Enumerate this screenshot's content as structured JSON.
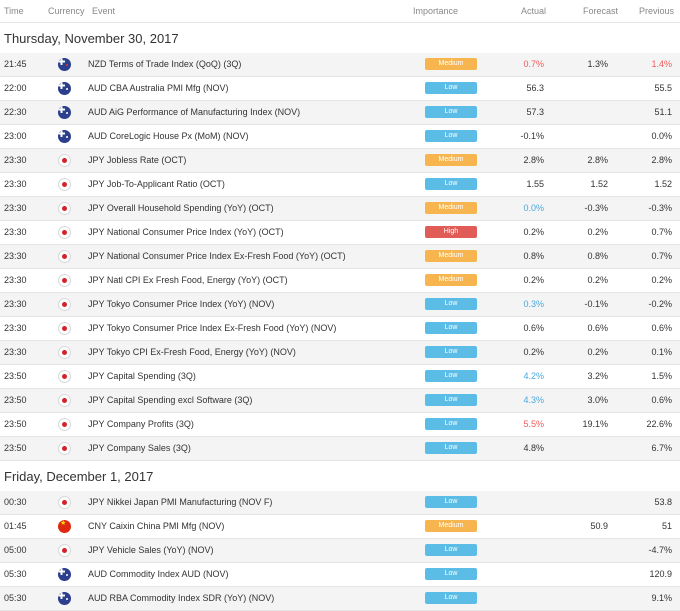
{
  "header": {
    "time": "Time",
    "currency": "Currency",
    "event": "Event",
    "importance": "Importance",
    "actual": "Actual",
    "forecast": "Forecast",
    "previous": "Previous"
  },
  "days": [
    {
      "label": "Thursday, November 30, 2017",
      "rows": [
        {
          "time": "21:45",
          "flag": "nz",
          "event": "NZD Terms of Trade Index (QoQ) (3Q)",
          "importance": "Medium",
          "actual": "0.7%",
          "actual_color": "red",
          "forecast": "1.3%",
          "previous": "1.4%",
          "previous_color": "red"
        },
        {
          "time": "22:00",
          "flag": "au",
          "event": "AUD CBA Australia PMI Mfg (NOV)",
          "importance": "Low",
          "actual": "56.3",
          "actual_color": "",
          "forecast": "",
          "previous": "55.5",
          "previous_color": ""
        },
        {
          "time": "22:30",
          "flag": "au",
          "event": "AUD AiG Performance of Manufacturing Index (NOV)",
          "importance": "Low",
          "actual": "57.3",
          "actual_color": "",
          "forecast": "",
          "previous": "51.1",
          "previous_color": ""
        },
        {
          "time": "23:00",
          "flag": "au",
          "event": "AUD CoreLogic House Px (MoM) (NOV)",
          "importance": "Low",
          "actual": "-0.1%",
          "actual_color": "",
          "forecast": "",
          "previous": "0.0%",
          "previous_color": ""
        },
        {
          "time": "23:30",
          "flag": "jp",
          "event": "JPY Jobless Rate (OCT)",
          "importance": "Medium",
          "actual": "2.8%",
          "actual_color": "",
          "forecast": "2.8%",
          "previous": "2.8%",
          "previous_color": ""
        },
        {
          "time": "23:30",
          "flag": "jp",
          "event": "JPY Job-To-Applicant Ratio (OCT)",
          "importance": "Low",
          "actual": "1.55",
          "actual_color": "",
          "forecast": "1.52",
          "previous": "1.52",
          "previous_color": ""
        },
        {
          "time": "23:30",
          "flag": "jp",
          "event": "JPY Overall Household Spending (YoY) (OCT)",
          "importance": "Medium",
          "actual": "0.0%",
          "actual_color": "blue",
          "forecast": "-0.3%",
          "previous": "-0.3%",
          "previous_color": ""
        },
        {
          "time": "23:30",
          "flag": "jp",
          "event": "JPY National Consumer Price Index (YoY) (OCT)",
          "importance": "High",
          "actual": "0.2%",
          "actual_color": "",
          "forecast": "0.2%",
          "previous": "0.7%",
          "previous_color": ""
        },
        {
          "time": "23:30",
          "flag": "jp",
          "event": "JPY National Consumer Price Index Ex-Fresh Food (YoY) (OCT)",
          "importance": "Medium",
          "actual": "0.8%",
          "actual_color": "",
          "forecast": "0.8%",
          "previous": "0.7%",
          "previous_color": ""
        },
        {
          "time": "23:30",
          "flag": "jp",
          "event": "JPY Natl CPI Ex Fresh Food, Energy (YoY) (OCT)",
          "importance": "Medium",
          "actual": "0.2%",
          "actual_color": "",
          "forecast": "0.2%",
          "previous": "0.2%",
          "previous_color": ""
        },
        {
          "time": "23:30",
          "flag": "jp",
          "event": "JPY Tokyo Consumer Price Index (YoY) (NOV)",
          "importance": "Low",
          "actual": "0.3%",
          "actual_color": "blue",
          "forecast": "-0.1%",
          "previous": "-0.2%",
          "previous_color": ""
        },
        {
          "time": "23:30",
          "flag": "jp",
          "event": "JPY Tokyo Consumer Price Index Ex-Fresh Food (YoY) (NOV)",
          "importance": "Low",
          "actual": "0.6%",
          "actual_color": "",
          "forecast": "0.6%",
          "previous": "0.6%",
          "previous_color": ""
        },
        {
          "time": "23:30",
          "flag": "jp",
          "event": "JPY Tokyo CPI Ex-Fresh Food, Energy (YoY) (NOV)",
          "importance": "Low",
          "actual": "0.2%",
          "actual_color": "",
          "forecast": "0.2%",
          "previous": "0.1%",
          "previous_color": ""
        },
        {
          "time": "23:50",
          "flag": "jp",
          "event": "JPY Capital Spending (3Q)",
          "importance": "Low",
          "actual": "4.2%",
          "actual_color": "blue",
          "forecast": "3.2%",
          "previous": "1.5%",
          "previous_color": ""
        },
        {
          "time": "23:50",
          "flag": "jp",
          "event": "JPY Capital Spending excl Software (3Q)",
          "importance": "Low",
          "actual": "4.3%",
          "actual_color": "blue",
          "forecast": "3.0%",
          "previous": "0.6%",
          "previous_color": ""
        },
        {
          "time": "23:50",
          "flag": "jp",
          "event": "JPY Company Profits (3Q)",
          "importance": "Low",
          "actual": "5.5%",
          "actual_color": "red",
          "forecast": "19.1%",
          "previous": "22.6%",
          "previous_color": ""
        },
        {
          "time": "23:50",
          "flag": "jp",
          "event": "JPY Company Sales (3Q)",
          "importance": "Low",
          "actual": "4.8%",
          "actual_color": "",
          "forecast": "",
          "previous": "6.7%",
          "previous_color": ""
        }
      ]
    },
    {
      "label": "Friday, December 1, 2017",
      "rows": [
        {
          "time": "00:30",
          "flag": "jp",
          "event": "JPY Nikkei Japan PMI Manufacturing (NOV F)",
          "importance": "Low",
          "actual": "",
          "actual_color": "",
          "forecast": "",
          "previous": "53.8",
          "previous_color": ""
        },
        {
          "time": "01:45",
          "flag": "cn",
          "event": "CNY Caixin China PMI Mfg (NOV)",
          "importance": "Medium",
          "actual": "",
          "actual_color": "",
          "forecast": "50.9",
          "previous": "51",
          "previous_color": ""
        },
        {
          "time": "05:00",
          "flag": "jp",
          "event": "JPY Vehicle Sales (YoY) (NOV)",
          "importance": "Low",
          "actual": "",
          "actual_color": "",
          "forecast": "",
          "previous": "-4.7%",
          "previous_color": ""
        },
        {
          "time": "05:30",
          "flag": "au",
          "event": "AUD Commodity Index AUD (NOV)",
          "importance": "Low",
          "actual": "",
          "actual_color": "",
          "forecast": "",
          "previous": "120.9",
          "previous_color": ""
        },
        {
          "time": "05:30",
          "flag": "au",
          "event": "AUD RBA Commodity Index SDR (YoY) (NOV)",
          "importance": "Low",
          "actual": "",
          "actual_color": "",
          "forecast": "",
          "previous": "9.1%",
          "previous_color": ""
        }
      ]
    }
  ],
  "colors": {
    "low": "#5bbde6",
    "medium": "#f6b54e",
    "high": "#e15b57",
    "negative": "#ef5b5b",
    "positive": "#4aa8e0"
  }
}
